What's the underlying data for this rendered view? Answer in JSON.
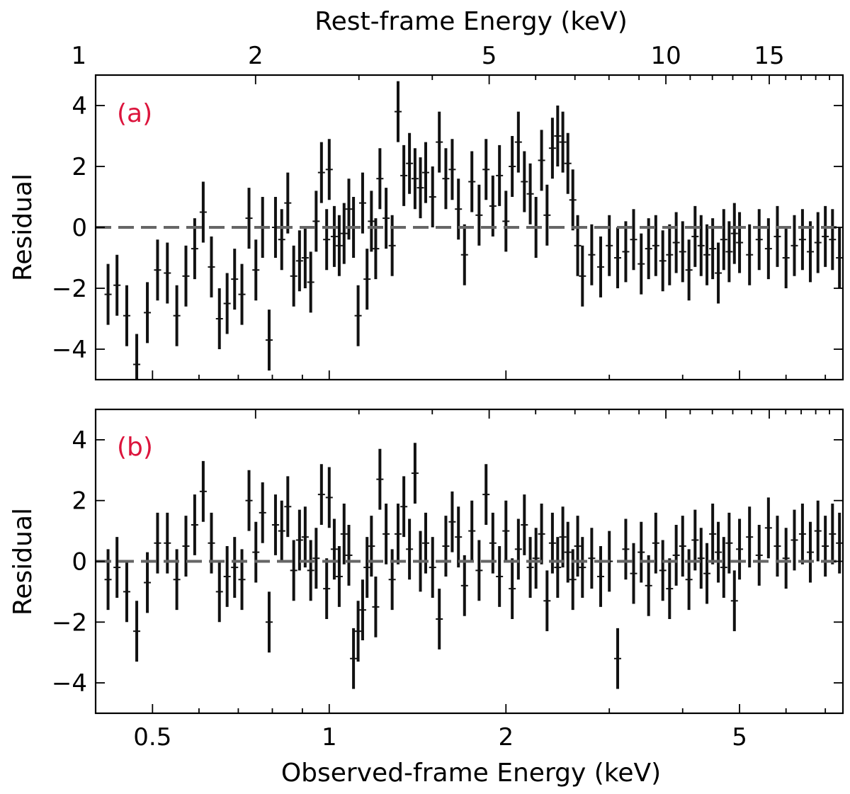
{
  "chart_data": [
    {
      "type": "scatter",
      "panel_label": "(a)",
      "ylabel": "Residual",
      "xlabel": "",
      "top_xlabel": "Rest-frame Energy (keV)",
      "xscale": "log",
      "xlim": [
        0.4,
        7.5
      ],
      "ylim": [
        -5,
        5
      ],
      "yticks": [
        -4,
        -2,
        0,
        2,
        4
      ],
      "top_xticks": [
        1,
        2,
        5,
        10,
        15
      ],
      "top_xtick_labels": [
        "1",
        "2",
        "5",
        "10",
        "15"
      ],
      "reference_line": 0,
      "error_bars": true,
      "series": [
        {
          "x": [
            0.42,
            0.435,
            0.452,
            0.47,
            0.49,
            0.51,
            0.53,
            0.55,
            0.57,
            0.59,
            0.61,
            0.63,
            0.65,
            0.67,
            0.69,
            0.71,
            0.73,
            0.75,
            0.77,
            0.79,
            0.81,
            0.83,
            0.85,
            0.87,
            0.89,
            0.91,
            0.93,
            0.95,
            0.97,
            0.99,
            1.0,
            1.02,
            1.04,
            1.06,
            1.08,
            1.1,
            1.12,
            1.14,
            1.16,
            1.18,
            1.2,
            1.22,
            1.25,
            1.28,
            1.31,
            1.34,
            1.37,
            1.4,
            1.43,
            1.46,
            1.5,
            1.54,
            1.58,
            1.62,
            1.66,
            1.7,
            1.75,
            1.8,
            1.85,
            1.9,
            1.95,
            2.0,
            2.05,
            2.1,
            2.15,
            2.2,
            2.25,
            2.3,
            2.35,
            2.4,
            2.45,
            2.5,
            2.55,
            2.6,
            2.65,
            2.7,
            2.8,
            2.9,
            3.0,
            3.1,
            3.2,
            3.3,
            3.4,
            3.5,
            3.6,
            3.7,
            3.8,
            3.9,
            4.0,
            4.1,
            4.2,
            4.3,
            4.4,
            4.5,
            4.6,
            4.7,
            4.8,
            4.9,
            5.0,
            5.2,
            5.4,
            5.6,
            5.8,
            6.0,
            6.2,
            6.4,
            6.6,
            6.8,
            7.0,
            7.2,
            7.4
          ],
          "y": [
            -2.2,
            -1.9,
            -2.9,
            -4.5,
            -2.8,
            -1.4,
            -1.5,
            -2.9,
            -1.6,
            -0.7,
            0.5,
            -1.3,
            -3.0,
            -2.5,
            -1.7,
            -2.2,
            0.3,
            -1.4,
            0.0,
            -3.7,
            0.0,
            -0.4,
            0.8,
            -1.6,
            -1.1,
            -1.0,
            -1.8,
            0.2,
            1.8,
            -0.4,
            1.9,
            -0.3,
            -0.6,
            -0.2,
            0.6,
            0.0,
            -2.9,
            0.8,
            -1.7,
            0.2,
            -0.7,
            1.6,
            0.3,
            -0.6,
            3.8,
            1.7,
            2.1,
            1.6,
            1.3,
            1.8,
            1.0,
            2.8,
            1.6,
            1.9,
            0.6,
            -0.9,
            1.5,
            0.4,
            1.9,
            0.7,
            1.7,
            0.2,
            2.0,
            2.8,
            1.5,
            1.1,
            0.0,
            2.2,
            0.4,
            2.6,
            3.0,
            2.8,
            2.1,
            0.9,
            -0.6,
            -1.6,
            -0.9,
            -1.3,
            -0.6,
            -1.0,
            -0.8,
            -0.4,
            -1.2,
            -0.7,
            -0.6,
            -1.1,
            -0.9,
            -0.5,
            -0.8,
            -1.4,
            -0.3,
            -0.6,
            -0.9,
            -0.7,
            -1.5,
            -0.4,
            -0.8,
            -0.2,
            -0.5,
            -0.9,
            -0.4,
            -0.7,
            -0.3,
            -1.0,
            -0.6,
            -0.4,
            -0.8,
            -0.5,
            -0.3,
            -0.4,
            -1.0
          ],
          "yerr": [
            1.0,
            1.0,
            1.0,
            1.0,
            1.0,
            1.0,
            1.0,
            1.0,
            1.0,
            1.0,
            1.0,
            1.0,
            1.0,
            1.0,
            1.0,
            1.0,
            1.0,
            1.0,
            1.0,
            1.0,
            1.0,
            1.0,
            1.0,
            1.0,
            1.0,
            1.0,
            1.0,
            1.0,
            1.0,
            1.0,
            1.0,
            1.0,
            1.0,
            1.0,
            1.0,
            1.0,
            1.0,
            1.0,
            1.0,
            1.0,
            1.0,
            1.0,
            1.0,
            1.0,
            1.0,
            1.0,
            1.0,
            1.0,
            1.0,
            1.0,
            1.0,
            1.0,
            1.0,
            1.0,
            1.0,
            1.0,
            1.0,
            1.0,
            1.0,
            1.0,
            1.0,
            1.0,
            1.0,
            1.0,
            1.0,
            1.0,
            1.0,
            1.0,
            1.0,
            1.0,
            1.0,
            1.0,
            1.0,
            1.0,
            1.0,
            1.0,
            1.0,
            1.0,
            1.0,
            1.0,
            1.0,
            1.0,
            1.0,
            1.0,
            1.0,
            1.0,
            1.0,
            1.0,
            1.0,
            1.0,
            1.0,
            1.0,
            1.0,
            1.0,
            1.0,
            1.0,
            1.0,
            1.0,
            1.0,
            1.0,
            1.0,
            1.0,
            1.0,
            1.0,
            1.0,
            1.0,
            1.0,
            1.0,
            1.0,
            1.0,
            1.0
          ]
        }
      ]
    },
    {
      "type": "scatter",
      "panel_label": "(b)",
      "ylabel": "Residual",
      "xlabel": "Observed-frame Energy (keV)",
      "xscale": "log",
      "xlim": [
        0.4,
        7.5
      ],
      "ylim": [
        -5,
        5
      ],
      "yticks": [
        -4,
        -2,
        0,
        2,
        4
      ],
      "xticks": [
        0.5,
        1,
        2,
        5
      ],
      "xtick_labels": [
        "0.5",
        "1",
        "2",
        "5"
      ],
      "reference_line": 0,
      "error_bars": true,
      "series": [
        {
          "x": [
            0.42,
            0.435,
            0.452,
            0.47,
            0.49,
            0.51,
            0.53,
            0.55,
            0.57,
            0.59,
            0.61,
            0.63,
            0.65,
            0.67,
            0.69,
            0.71,
            0.73,
            0.75,
            0.77,
            0.79,
            0.81,
            0.83,
            0.85,
            0.87,
            0.89,
            0.91,
            0.93,
            0.95,
            0.97,
            0.99,
            1.0,
            1.02,
            1.04,
            1.06,
            1.08,
            1.1,
            1.12,
            1.14,
            1.16,
            1.18,
            1.2,
            1.22,
            1.25,
            1.28,
            1.31,
            1.34,
            1.37,
            1.4,
            1.43,
            1.46,
            1.5,
            1.54,
            1.58,
            1.62,
            1.66,
            1.7,
            1.75,
            1.8,
            1.85,
            1.9,
            1.95,
            2.0,
            2.05,
            2.1,
            2.15,
            2.2,
            2.25,
            2.3,
            2.35,
            2.4,
            2.45,
            2.5,
            2.55,
            2.6,
            2.65,
            2.7,
            2.8,
            2.9,
            3.0,
            3.1,
            3.2,
            3.3,
            3.4,
            3.5,
            3.6,
            3.7,
            3.8,
            3.9,
            4.0,
            4.1,
            4.2,
            4.3,
            4.4,
            4.5,
            4.6,
            4.7,
            4.8,
            4.9,
            5.0,
            5.2,
            5.4,
            5.6,
            5.8,
            6.0,
            6.2,
            6.4,
            6.6,
            6.8,
            7.0,
            7.2,
            7.4
          ],
          "y": [
            -0.6,
            -0.2,
            -1.0,
            -2.3,
            -0.7,
            0.6,
            0.6,
            -0.6,
            0.5,
            1.2,
            2.3,
            0.6,
            -1.0,
            -0.5,
            -0.2,
            -0.6,
            2.0,
            0.3,
            1.6,
            -2.0,
            1.2,
            1.0,
            1.8,
            -0.3,
            0.7,
            0.8,
            -0.3,
            0.1,
            2.2,
            -0.9,
            2.1,
            0.4,
            -0.5,
            0.9,
            0.2,
            -3.2,
            -2.3,
            -1.6,
            -0.2,
            0.5,
            -1.5,
            2.7,
            0.9,
            -0.6,
            0.9,
            1.8,
            0.4,
            2.9,
            0.0,
            0.6,
            -0.2,
            -1.9,
            0.5,
            1.3,
            0.8,
            -0.8,
            1.0,
            -0.3,
            2.2,
            0.6,
            -0.5,
            1.0,
            -0.9,
            0.4,
            1.2,
            -0.2,
            0.1,
            0.9,
            -1.3,
            0.6,
            -0.2,
            0.8,
            0.3,
            -0.6,
            0.5,
            -0.2,
            0.1,
            -0.5,
            0.0,
            -3.2,
            0.4,
            -0.4,
            0.3,
            -0.8,
            0.6,
            -0.3,
            -0.9,
            0.2,
            0.5,
            -0.6,
            0.7,
            0.1,
            -0.4,
            0.9,
            0.3,
            -0.2,
            0.6,
            -1.3,
            0.4,
            0.8,
            0.2,
            1.1,
            0.5,
            0.1,
            0.7,
            0.9,
            0.3,
            1.0,
            0.5,
            0.9,
            0.6
          ],
          "yerr": [
            1.0,
            1.0,
            1.0,
            1.0,
            1.0,
            1.0,
            1.0,
            1.0,
            1.0,
            1.0,
            1.0,
            1.0,
            1.0,
            1.0,
            1.0,
            1.0,
            1.0,
            1.0,
            1.0,
            1.0,
            1.0,
            1.0,
            1.0,
            1.0,
            1.0,
            1.0,
            1.0,
            1.0,
            1.0,
            1.0,
            1.0,
            1.0,
            1.0,
            1.0,
            1.0,
            1.0,
            1.0,
            1.0,
            1.0,
            1.0,
            1.0,
            1.0,
            1.0,
            1.0,
            1.0,
            1.0,
            1.0,
            1.0,
            1.0,
            1.0,
            1.0,
            1.0,
            1.0,
            1.0,
            1.0,
            1.0,
            1.0,
            1.0,
            1.0,
            1.0,
            1.0,
            1.0,
            1.0,
            1.0,
            1.0,
            1.0,
            1.0,
            1.0,
            1.0,
            1.0,
            1.0,
            1.0,
            1.0,
            1.0,
            1.0,
            1.0,
            1.0,
            1.0,
            1.0,
            1.0,
            1.0,
            1.0,
            1.0,
            1.0,
            1.0,
            1.0,
            1.0,
            1.0,
            1.0,
            1.0,
            1.0,
            1.0,
            1.0,
            1.0,
            1.0,
            1.0,
            1.0,
            1.0,
            1.0,
            1.0,
            1.0,
            1.0,
            1.0,
            1.0,
            1.0,
            1.0,
            1.0,
            1.0,
            1.0,
            1.0,
            1.0
          ]
        }
      ]
    }
  ],
  "colors": {
    "panel_label": "#dc143c",
    "data": "#111111",
    "reference_line": "#666666"
  }
}
